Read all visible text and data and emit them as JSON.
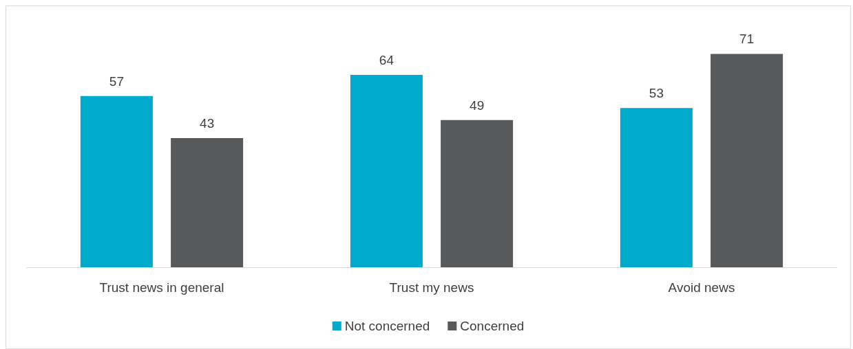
{
  "chart_data": {
    "type": "bar",
    "categories": [
      "Trust news in general",
      "Trust my news",
      "Avoid news"
    ],
    "series": [
      {
        "name": "Not concerned",
        "color": "#00aacc",
        "values": [
          57,
          64,
          53
        ]
      },
      {
        "name": "Concerned",
        "color": "#58595b",
        "values": [
          43,
          49,
          71
        ]
      }
    ],
    "data_labels": true,
    "legend": "bottom",
    "grid": false
  }
}
